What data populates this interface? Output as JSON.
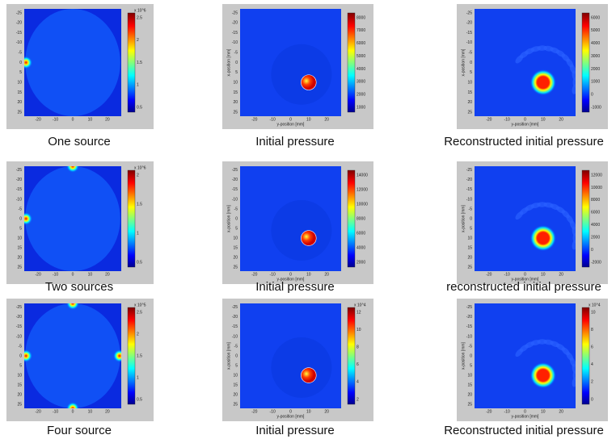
{
  "axis_labels": {
    "x": "y-position [mm]",
    "y": "x-position [mm]"
  },
  "x_ticks": [
    "-20",
    "-10",
    "0",
    "10",
    "20"
  ],
  "y_ticks": [
    "-25",
    "-20",
    "-15",
    "-10",
    "-5",
    "0",
    "5",
    "10",
    "15",
    "20",
    "25"
  ],
  "panels": [
    {
      "caption": "One source",
      "colorbar_scale": "x 10^6",
      "colorbar_ticks": [
        "2.5",
        "2",
        "1.5",
        "1",
        "0.5"
      ]
    },
    {
      "caption": "Initial pressure",
      "colorbar_ticks": [
        "8000",
        "7000",
        "6000",
        "5000",
        "4000",
        "3000",
        "2000",
        "1000"
      ]
    },
    {
      "caption": "Reconstructed initial pressure",
      "colorbar_ticks": [
        "6000",
        "5000",
        "4000",
        "3000",
        "2000",
        "1000",
        "0",
        "-1000"
      ]
    },
    {
      "caption": "Two sources",
      "colorbar_scale": "x 10^6",
      "colorbar_ticks": [
        "2",
        "1.5",
        "1",
        "0.5"
      ]
    },
    {
      "caption": "Initial pressure",
      "colorbar_ticks": [
        "14000",
        "12000",
        "10000",
        "8000",
        "6000",
        "4000",
        "2000"
      ]
    },
    {
      "caption": "reconstructed initial pressure",
      "colorbar_ticks": [
        "12000",
        "10000",
        "8000",
        "6000",
        "4000",
        "2000",
        "0",
        "-2000"
      ]
    },
    {
      "caption": "Four source",
      "colorbar_scale": "x 10^5",
      "colorbar_ticks": [
        "2.5",
        "2",
        "1.5",
        "1",
        "0.5"
      ]
    },
    {
      "caption": "Initial pressure",
      "colorbar_scale": "x 10^4",
      "colorbar_ticks": [
        "12",
        "10",
        "8",
        "6",
        "4",
        "2"
      ]
    },
    {
      "caption": "Reconstructed initial pressure",
      "colorbar_scale": "x 10^4",
      "colorbar_ticks": [
        "10",
        "8",
        "6",
        "4",
        "2",
        "0"
      ]
    }
  ]
}
